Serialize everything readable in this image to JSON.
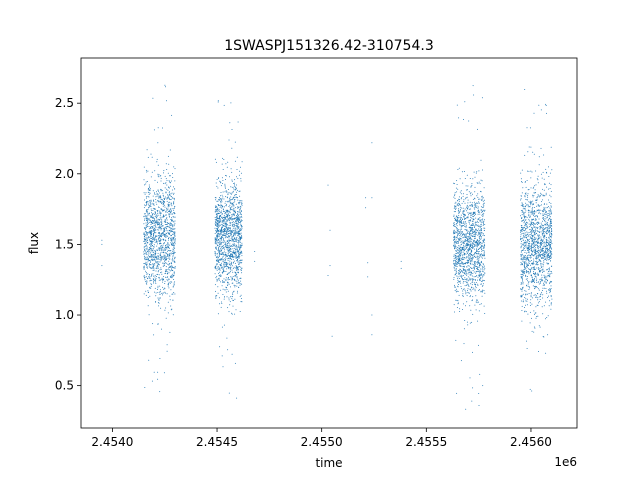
{
  "chart_data": {
    "type": "scatter",
    "title": "1SWASPJ151326.42-310754.3",
    "xlabel": "time",
    "ylabel": "flux",
    "x_offset_label": "1e6",
    "xlim": [
      2.45385,
      2.45622
    ],
    "ylim": [
      0.2,
      2.82
    ],
    "xticks": [
      2.454,
      2.4545,
      2.455,
      2.4555,
      2.456
    ],
    "xtick_labels": [
      "2.4540",
      "2.4545",
      "2.4550",
      "2.4555",
      "2.4560"
    ],
    "yticks": [
      0.5,
      1.0,
      1.5,
      2.0,
      2.5
    ],
    "ytick_labels": [
      "0.5",
      "1.0",
      "1.5",
      "2.0",
      "2.5"
    ],
    "grid": false,
    "series": [
      {
        "color": "#1f77b4",
        "marker_size": 0.5,
        "clusters": [
          {
            "x_range": [
              2.45415,
              2.4543
            ],
            "y_center": 1.55,
            "y_spread": 0.22,
            "y_range": [
              0.4,
              2.65
            ]
          },
          {
            "x_range": [
              2.45449,
              2.45462
            ],
            "y_center": 1.55,
            "y_spread": 0.2,
            "y_range": [
              0.35,
              2.6
            ]
          },
          {
            "x_range": [
              2.45563,
              2.45578
            ],
            "y_center": 1.5,
            "y_spread": 0.2,
            "y_range": [
              0.33,
              2.67
            ]
          },
          {
            "x_range": [
              2.45595,
              2.4561
            ],
            "y_center": 1.5,
            "y_spread": 0.22,
            "y_range": [
              0.3,
              2.68
            ]
          }
        ],
        "isolated_points": [
          [
            2.45395,
            1.35
          ],
          [
            2.45395,
            1.5
          ],
          [
            2.45395,
            1.53
          ],
          [
            2.45468,
            1.45
          ],
          [
            2.45468,
            1.38
          ],
          [
            2.45503,
            1.92
          ],
          [
            2.45503,
            1.28
          ],
          [
            2.45504,
            1.6
          ],
          [
            2.45504,
            1.35
          ],
          [
            2.45505,
            0.85
          ],
          [
            2.45521,
            1.83
          ],
          [
            2.45521,
            1.76
          ],
          [
            2.45522,
            1.37
          ],
          [
            2.45522,
            1.27
          ],
          [
            2.45524,
            2.22
          ],
          [
            2.45524,
            1.83
          ],
          [
            2.45524,
            1.0
          ],
          [
            2.45524,
            0.86
          ],
          [
            2.45538,
            1.38
          ],
          [
            2.45538,
            1.33
          ]
        ]
      }
    ]
  }
}
